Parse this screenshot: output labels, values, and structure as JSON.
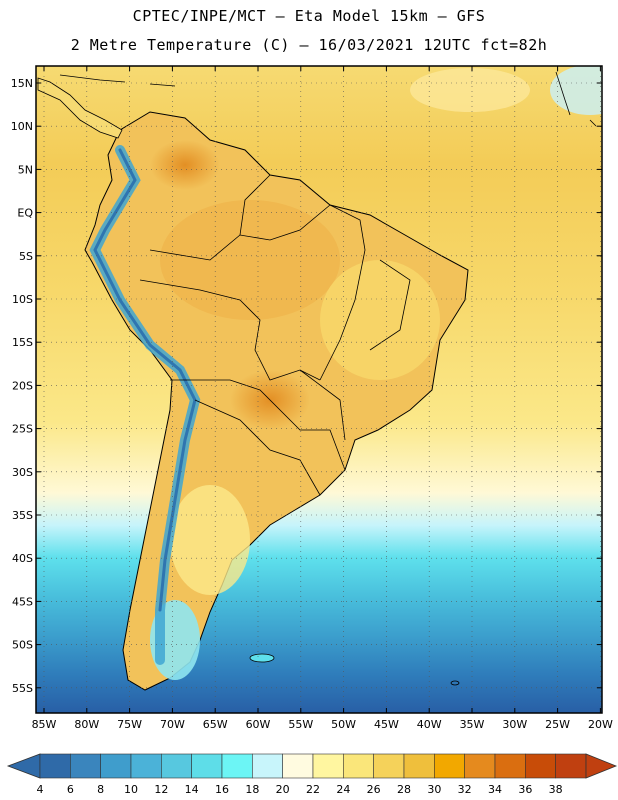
{
  "title": {
    "line1": "CPTEC/INPE/MCT –  Eta Model 15km – GFS",
    "line2": "2 Metre Temperature (C) – 16/03/2021 12UTC fct=82h"
  },
  "map": {
    "lat_labels": [
      "15N",
      "10N",
      "5N",
      "EQ",
      "5S",
      "10S",
      "15S",
      "20S",
      "25S",
      "30S",
      "35S",
      "40S",
      "45S",
      "50S",
      "55S"
    ],
    "lon_labels": [
      "85W",
      "80W",
      "75W",
      "70W",
      "65W",
      "60W",
      "55W",
      "50W",
      "45W",
      "40W",
      "35W",
      "30W",
      "25W",
      "20W"
    ],
    "gridlines": true
  },
  "colorbar": {
    "labels": [
      "4",
      "6",
      "8",
      "10",
      "12",
      "14",
      "16",
      "18",
      "20",
      "22",
      "24",
      "26",
      "28",
      "30",
      "32",
      "34",
      "36",
      "38"
    ],
    "colors": [
      "#2f6aa8",
      "#3a85bd",
      "#3f9dcc",
      "#4bb2d8",
      "#57c8df",
      "#5edde8",
      "#6cf5f5",
      "#c8f5fb",
      "#fffbe0",
      "#fff6a0",
      "#fae67a",
      "#f5d25a",
      "#efbf3c",
      "#f2a800",
      "#e58a1e",
      "#da6e10",
      "#c84c08",
      "#c04010"
    ],
    "min_color": "#2f6aa8",
    "max_color": "#c04010"
  }
}
